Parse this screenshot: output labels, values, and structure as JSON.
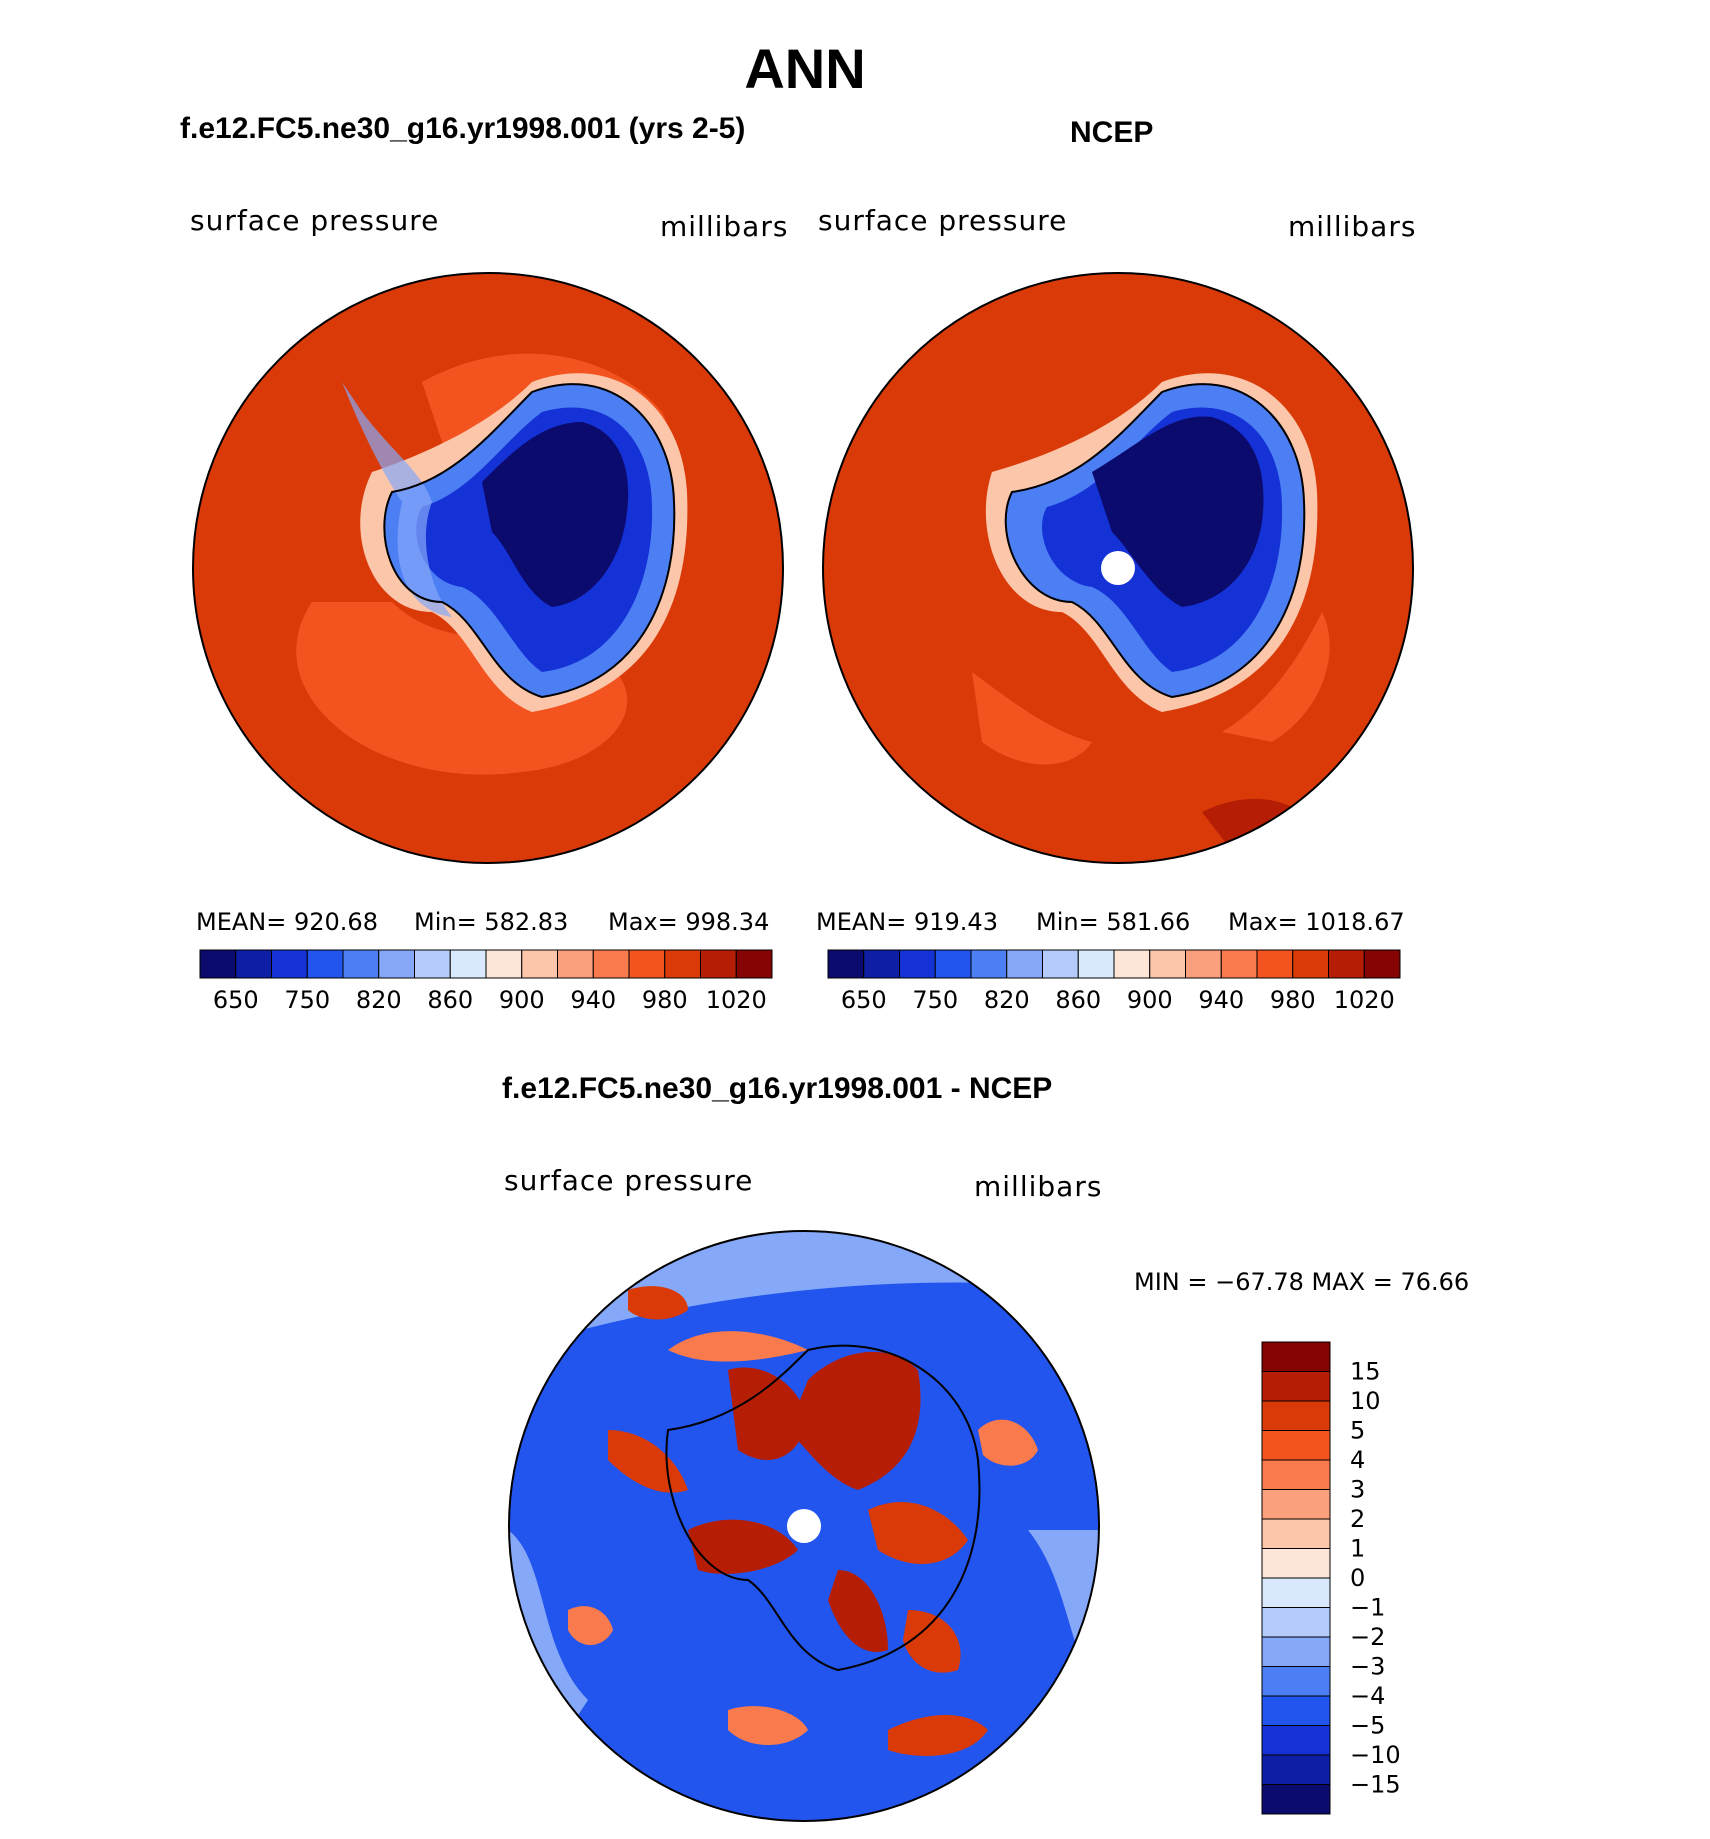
{
  "title": "ANN",
  "panels": [
    {
      "title": "f.e12.FC5.ne30_g16.yr1998.001 (yrs 2-5)",
      "left_label": "surface  pressure",
      "right_label": "millibars",
      "stats": {
        "mean": "MEAN=  920.68",
        "min": "Min=  582.83",
        "max": "Max=  998.34"
      }
    },
    {
      "title": "NCEP",
      "left_label": "surface  pressure",
      "right_label": "millibars",
      "stats": {
        "mean": "MEAN=  919.43",
        "min": "Min=  581.66",
        "max": "Max=  1018.67"
      }
    }
  ],
  "diff_panel": {
    "title": "f.e12.FC5.ne30_g16.yr1998.001 - NCEP",
    "left_label": "surface  pressure",
    "right_label": "millibars",
    "minmax": "MIN  =  −67.78  MAX  =     76.66"
  },
  "colorbar_abs": {
    "colors": [
      "#0b0b6e",
      "#0e1fa6",
      "#1432d6",
      "#2255ee",
      "#4c7ef4",
      "#86a8f8",
      "#b5ccfb",
      "#d9e8fc",
      "#fde6d8",
      "#fcc6aa",
      "#fba07c",
      "#f97a4c",
      "#f3531f",
      "#d93a08",
      "#b51e05",
      "#850404"
    ],
    "tick_labels": [
      "650",
      "750",
      "820",
      "860",
      "900",
      "940",
      "980",
      "1020"
    ]
  },
  "colorbar_diff": {
    "colors": [
      "#850404",
      "#b51e05",
      "#d93a08",
      "#f3531f",
      "#f97a4c",
      "#fba07c",
      "#fcc6aa",
      "#fde6d8",
      "#d9e8fc",
      "#b5ccfb",
      "#86a8f8",
      "#4c7ef4",
      "#2255ee",
      "#1432d6",
      "#0e1fa6",
      "#0b0b6e"
    ],
    "tick_labels": [
      "15",
      "10",
      "5",
      "4",
      "3",
      "2",
      "1",
      "0",
      "−1",
      "−2",
      "−3",
      "−4",
      "−5",
      "−10",
      "−15"
    ]
  },
  "map_colors": {
    "ocean": "#d93a08",
    "ocean_mid": "#f3531f",
    "land_high": "#0b0b6e",
    "land_mid": "#1432d6",
    "diff_pos": "#b51e05",
    "diff_neg": "#1432d6"
  }
}
